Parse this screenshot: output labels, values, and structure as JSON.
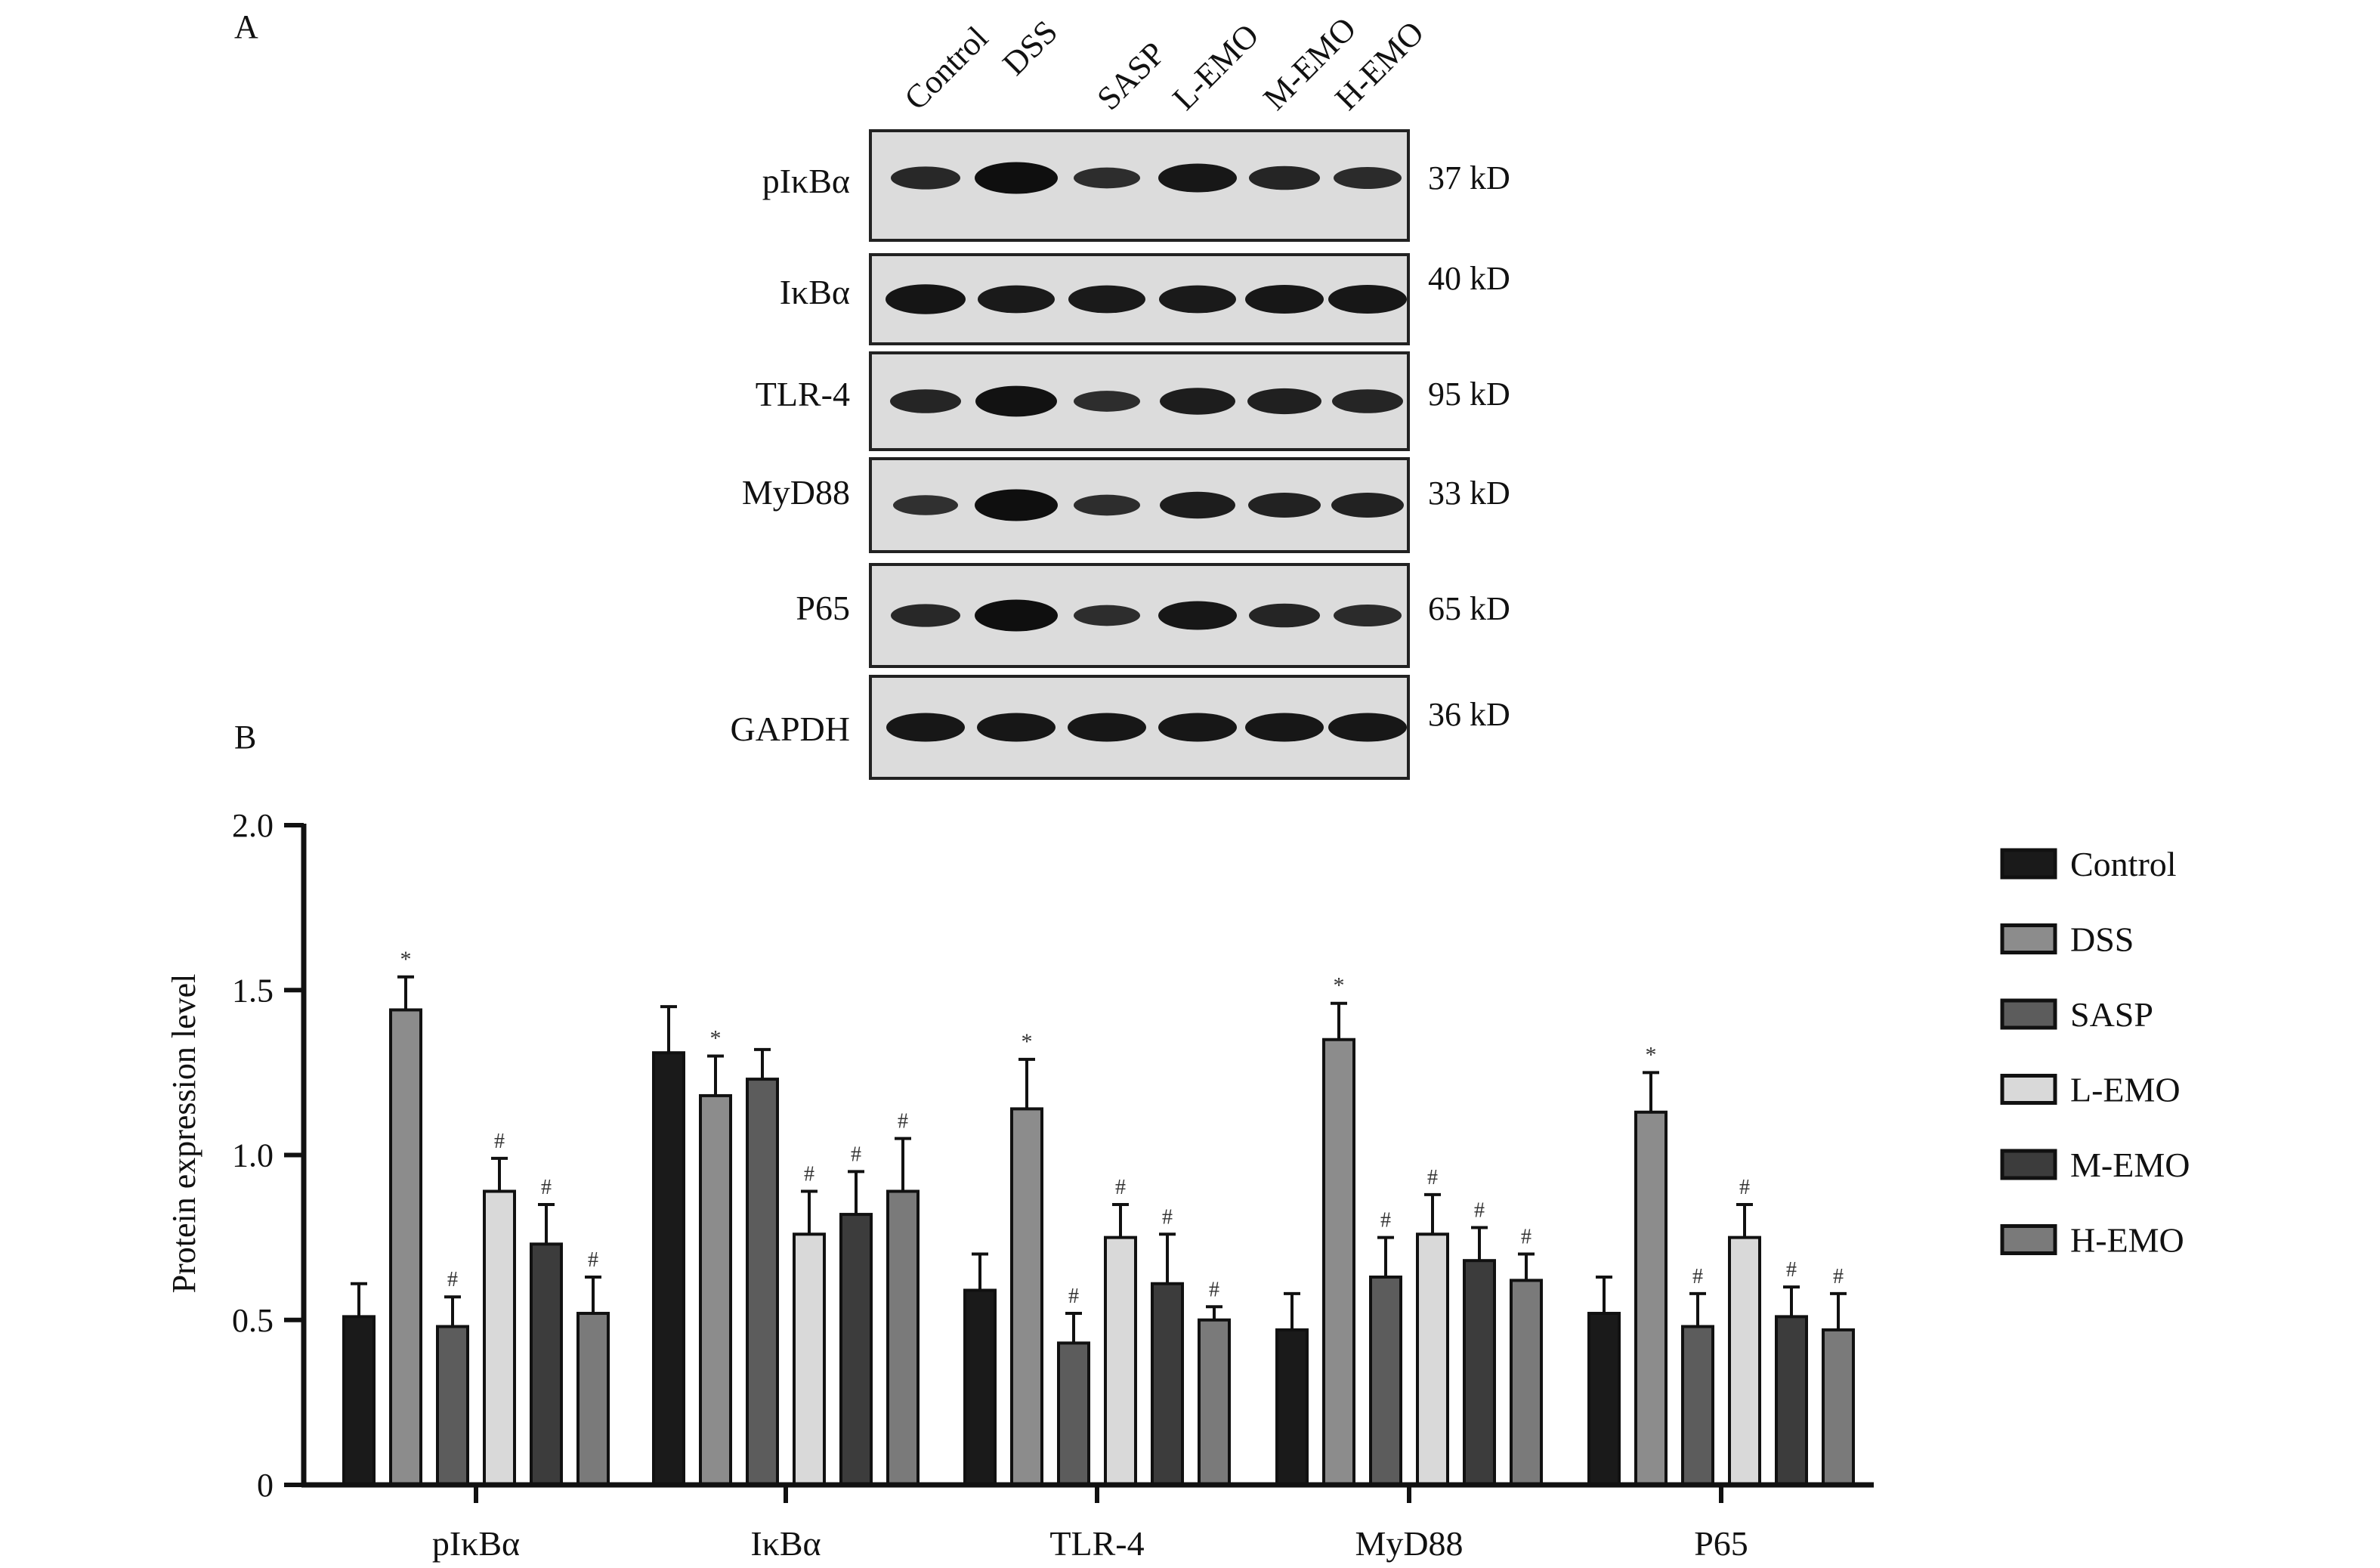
{
  "panel_labels": {
    "a": "A",
    "b": "B"
  },
  "western_blot": {
    "lanes": [
      "Control",
      "DSS",
      "SASP",
      "L-EMO",
      "M-EMO",
      "H-EMO"
    ],
    "rows": [
      {
        "protein": "pIκBα",
        "size": "37 kD",
        "intensity": [
          0.55,
          1.0,
          0.45,
          0.85,
          0.6,
          0.5
        ]
      },
      {
        "protein": "IκBα",
        "size": "40 kD",
        "intensity": [
          0.9,
          0.8,
          0.8,
          0.8,
          0.85,
          0.85
        ]
      },
      {
        "protein": "TLR-4",
        "size": "95 kD",
        "intensity": [
          0.6,
          0.95,
          0.45,
          0.75,
          0.7,
          0.6
        ]
      },
      {
        "protein": "MyD88",
        "size": "33 kD",
        "intensity": [
          0.4,
          1.0,
          0.45,
          0.75,
          0.65,
          0.65
        ]
      },
      {
        "protein": "P65",
        "size": "65 kD",
        "intensity": [
          0.55,
          1.0,
          0.45,
          0.85,
          0.6,
          0.5
        ]
      },
      {
        "protein": "GAPDH",
        "size": "36 kD",
        "intensity": [
          0.85,
          0.85,
          0.85,
          0.85,
          0.85,
          0.85
        ]
      }
    ]
  },
  "chart_data": {
    "type": "bar",
    "ylabel": "Protein expression level",
    "ylim": [
      0,
      2.0
    ],
    "yticks": [
      0,
      0.5,
      1.0,
      1.5,
      2.0
    ],
    "ytick_labels": [
      "0",
      "0.5",
      "1.0",
      "1.5",
      "2.0"
    ],
    "legend_position": "right",
    "categories": [
      "pIκBα",
      "IκBα",
      "TLR-4",
      "MyD88",
      "P65"
    ],
    "series": [
      {
        "name": "Control",
        "color": "#1a1a1a",
        "values": [
          0.51,
          1.31,
          0.59,
          0.47,
          0.52
        ],
        "errors": [
          0.1,
          0.14,
          0.11,
          0.11,
          0.11
        ],
        "marks": [
          "",
          "",
          "",
          "",
          ""
        ]
      },
      {
        "name": "DSS",
        "color": "#8c8c8c",
        "values": [
          1.44,
          1.18,
          1.14,
          1.35,
          1.13
        ],
        "errors": [
          0.1,
          0.12,
          0.15,
          0.11,
          0.12
        ],
        "marks": [
          "*",
          "*",
          "*",
          "*",
          "*"
        ]
      },
      {
        "name": "SASP",
        "color": "#5c5c5c",
        "values": [
          0.48,
          1.23,
          0.43,
          0.63,
          0.48
        ],
        "errors": [
          0.09,
          0.09,
          0.09,
          0.12,
          0.1
        ],
        "marks": [
          "#",
          "",
          "#",
          "#",
          "#"
        ]
      },
      {
        "name": "L-EMO",
        "color": "#d9d9d9",
        "values": [
          0.89,
          0.76,
          0.75,
          0.76,
          0.75
        ],
        "errors": [
          0.1,
          0.13,
          0.1,
          0.12,
          0.1
        ],
        "marks": [
          "#",
          "#",
          "#",
          "#",
          "#"
        ]
      },
      {
        "name": "M-EMO",
        "color": "#3c3c3c",
        "values": [
          0.73,
          0.82,
          0.61,
          0.68,
          0.51
        ],
        "errors": [
          0.12,
          0.13,
          0.15,
          0.1,
          0.09
        ],
        "marks": [
          "#",
          "#",
          "#",
          "#",
          "#"
        ]
      },
      {
        "name": "H-EMO",
        "color": "#7a7a7a",
        "values": [
          0.52,
          0.89,
          0.5,
          0.62,
          0.47
        ],
        "errors": [
          0.11,
          0.16,
          0.04,
          0.08,
          0.11
        ],
        "marks": [
          "#",
          "#",
          "#",
          "#",
          "#"
        ]
      }
    ]
  }
}
